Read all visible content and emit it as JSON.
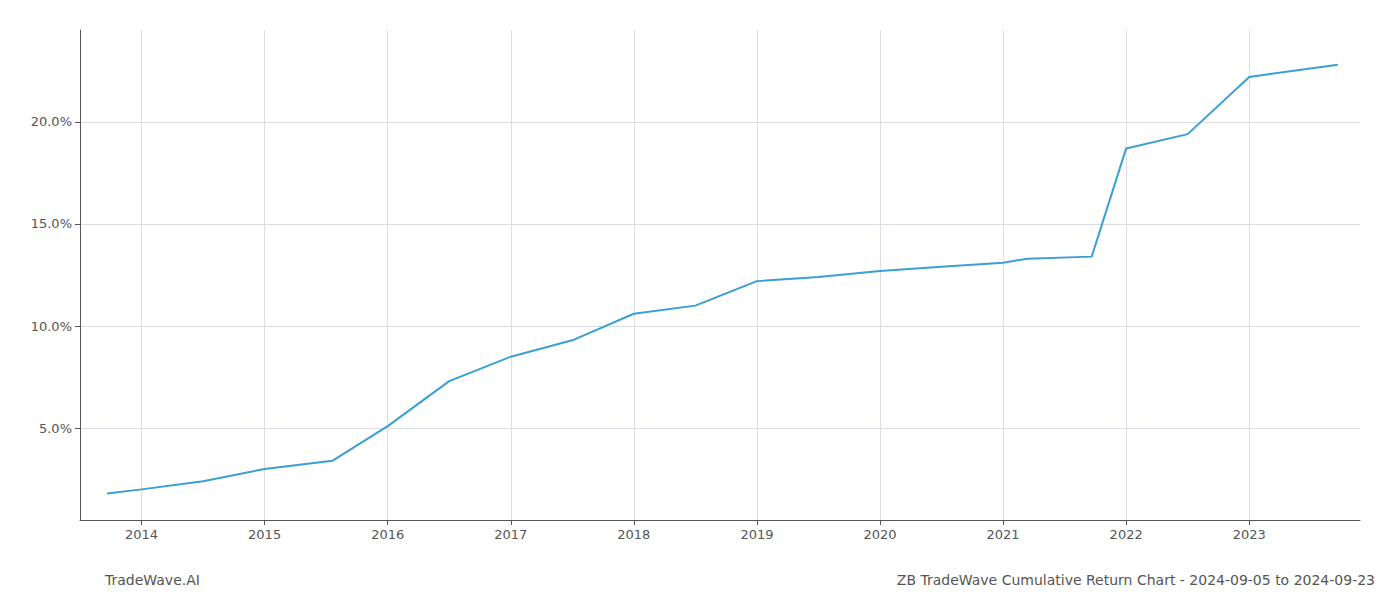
{
  "chart_data": {
    "type": "line",
    "title": "ZB TradeWave Cumulative Return Chart - 2024-09-05 to 2024-09-23",
    "annotations": [
      "TradeWave.AI"
    ],
    "x": [
      2013.72,
      2014.0,
      2014.5,
      2015.0,
      2015.55,
      2016.0,
      2016.5,
      2017.0,
      2017.5,
      2018.0,
      2018.5,
      2019.0,
      2019.5,
      2020.0,
      2020.5,
      2021.0,
      2021.2,
      2021.72,
      2022.0,
      2022.5,
      2023.0,
      2023.72
    ],
    "values": [
      0.018,
      0.02,
      0.024,
      0.03,
      0.034,
      0.051,
      0.073,
      0.085,
      0.093,
      0.106,
      0.11,
      0.122,
      0.124,
      0.127,
      0.129,
      0.131,
      0.133,
      0.134,
      0.187,
      0.194,
      0.222,
      0.228
    ],
    "color": "#3a9fd1",
    "xlim": [
      2013.5,
      2023.9
    ],
    "xticks": [
      2014,
      2015,
      2016,
      2017,
      2018,
      2019,
      2020,
      2021,
      2022,
      2023
    ],
    "ylim": [
      0.005,
      0.245
    ],
    "yticks": [
      {
        "value": 0.05,
        "label": "5.0%"
      },
      {
        "value": 0.1,
        "label": "10.0%"
      },
      {
        "value": 0.15,
        "label": "15.0%"
      },
      {
        "value": 0.2,
        "label": "20.0%"
      }
    ],
    "grid": true
  }
}
